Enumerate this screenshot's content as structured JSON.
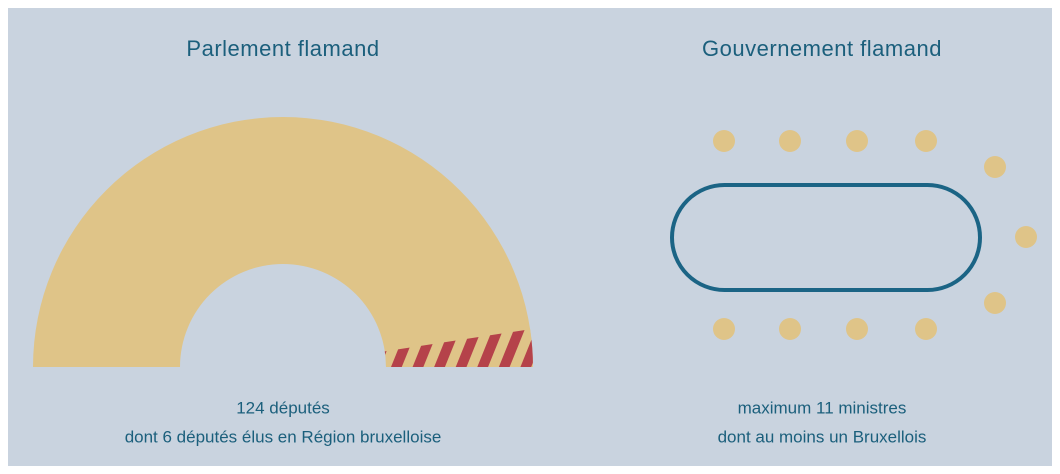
{
  "parlement": {
    "title": "Parlement flamand",
    "caption": [
      "124 députés",
      "dont 6 députés élus en Région bruxelloise"
    ]
  },
  "gouvernement": {
    "title": "Gouvernement flamand",
    "caption": [
      "maximum 11 ministres",
      "dont au moins un Bruxellois"
    ]
  }
}
